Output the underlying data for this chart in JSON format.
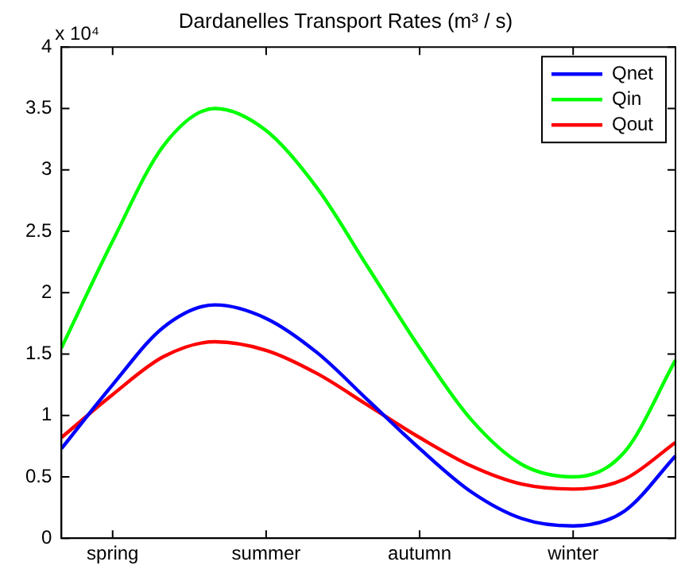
{
  "chart_data": {
    "type": "line",
    "title": "Dardanelles Transport Rates (m³ / s)",
    "annotations": [
      "x 10⁴"
    ],
    "categories": [
      null,
      "spring",
      null,
      null,
      "summer",
      null,
      null,
      "autumn",
      null,
      null,
      "winter",
      null,
      null
    ],
    "series": [
      {
        "name": "Qnet",
        "color": "#0000ff",
        "values": [
          0.73,
          1.25,
          1.72,
          1.9,
          1.79,
          1.51,
          1.12,
          0.73,
          0.38,
          0.16,
          0.1,
          0.22,
          0.67
        ]
      },
      {
        "name": "Qin",
        "color": "#00ff00",
        "values": [
          1.55,
          2.42,
          3.2,
          3.5,
          3.32,
          2.85,
          2.2,
          1.55,
          0.97,
          0.6,
          0.5,
          0.7,
          1.45
        ]
      },
      {
        "name": "Qout",
        "color": "#ff0000",
        "values": [
          0.82,
          1.17,
          1.48,
          1.6,
          1.53,
          1.34,
          1.08,
          0.82,
          0.59,
          0.44,
          0.4,
          0.48,
          0.78
        ]
      }
    ],
    "ylim": [
      0,
      4
    ],
    "yticks": [
      0,
      0.5,
      1,
      1.5,
      2,
      2.5,
      3,
      3.5,
      4
    ],
    "grid": false,
    "legend": "top right",
    "marker": "none",
    "line_style": "solid"
  }
}
